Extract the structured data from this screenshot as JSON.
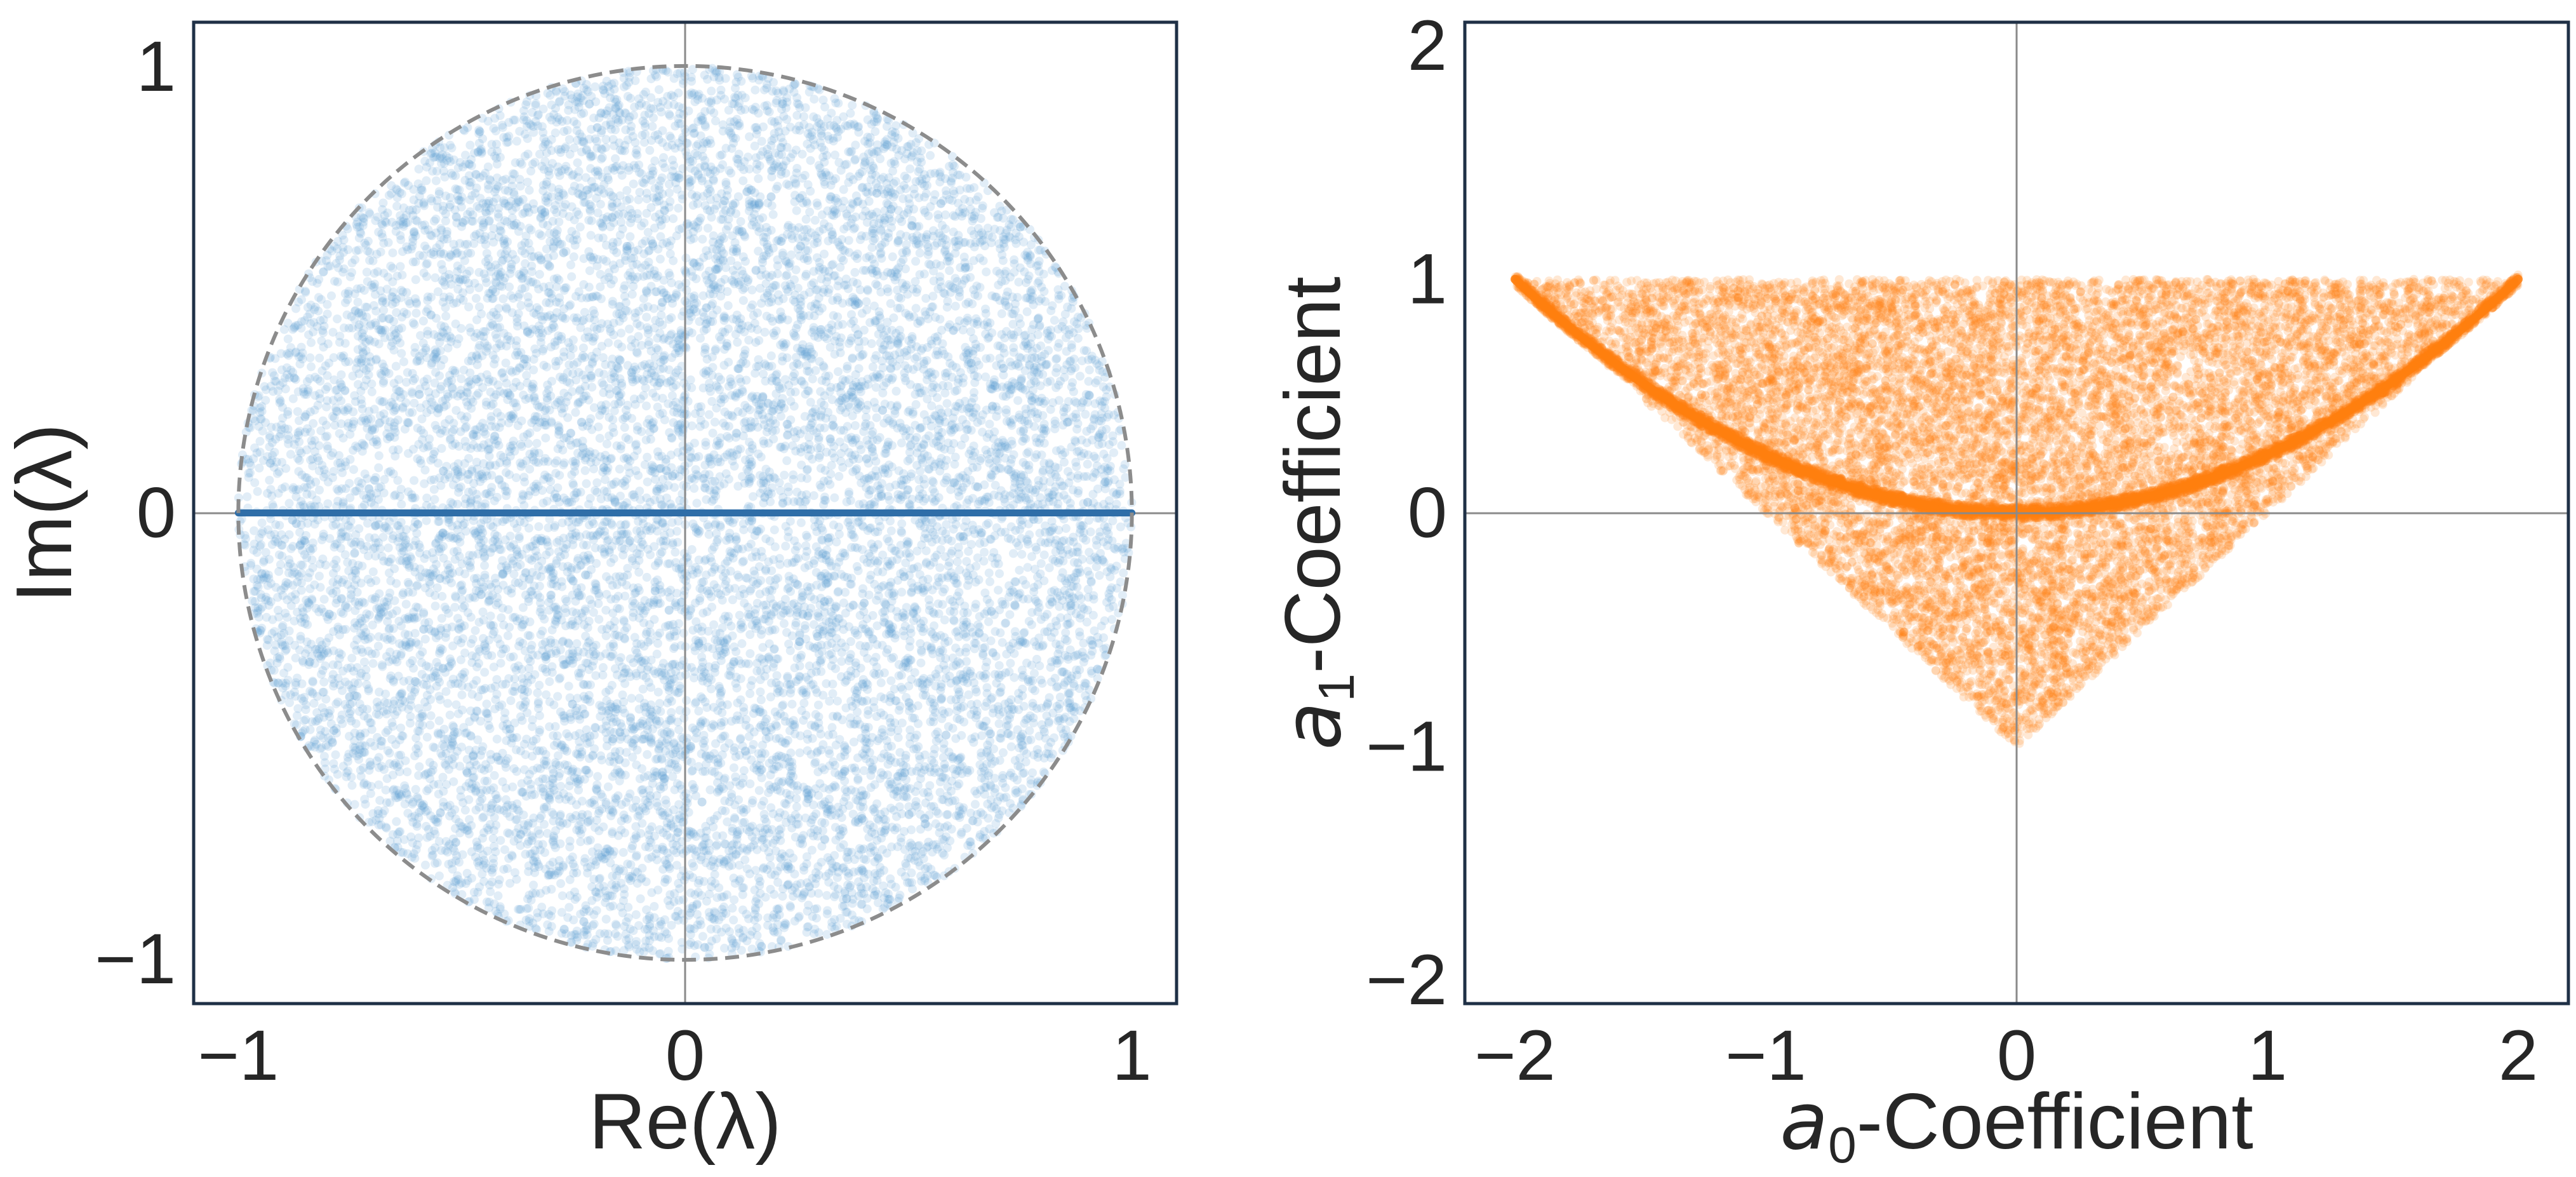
{
  "chart_data": [
    {
      "type": "scatter",
      "title": "",
      "xlabel": "Re(λ)",
      "ylabel": "Im(λ)",
      "xlim": [
        -1.1,
        1.1
      ],
      "ylim": [
        -1.1,
        1.1
      ],
      "xticks": [
        -1,
        0,
        1
      ],
      "yticks": [
        -1,
        0,
        1
      ],
      "xtick_labels": [
        "−1",
        "0",
        "1"
      ],
      "ytick_labels": [
        "−1",
        "0",
        "1"
      ],
      "grid": false,
      "zero_lines": true,
      "legend": false,
      "description": "Roots of random quadratics: complex roots fill unit disk uniformly; real roots lie on the segment [-1, 1] of the real axis",
      "unit_circle": {
        "center": [
          0,
          0
        ],
        "radius": 1,
        "style": "dashed",
        "color": "#888888"
      },
      "series": [
        {
          "region": "disk",
          "center": [
            0,
            0
          ],
          "radius": 1,
          "color": "#5b9bd5",
          "alpha": 0.18,
          "approx_points": 12000
        },
        {
          "region": "segment",
          "y": 0,
          "x_range": [
            -1,
            1
          ],
          "color": "#2f6ea8",
          "alpha": 0.9
        }
      ]
    },
    {
      "type": "scatter",
      "title": "",
      "xlabel": "a",
      "xlabel_sub": "0",
      "xlabel_suffix": "-Coefficient",
      "ylabel": "a",
      "ylabel_sub": "1",
      "ylabel_suffix": "-Coefficient",
      "xlim": [
        -2.2,
        2.2
      ],
      "ylim": [
        -2.1,
        2.1
      ],
      "xticks": [
        -2,
        -1,
        0,
        1,
        2
      ],
      "yticks": [
        -2,
        -1,
        0,
        1,
        2
      ],
      "xtick_labels": [
        "−2",
        "−1",
        "0",
        "1",
        "2"
      ],
      "ytick_labels": [
        "−2",
        "−1",
        "0",
        "1",
        "2"
      ],
      "grid": false,
      "zero_lines": true,
      "legend": false,
      "description": "Coefficient region: triangle with vertices (-2,1), (2,1), (0,-1); dense along parabola a1 = a0^2/4 from (-2,1) through (0,0) to (2,1)",
      "series": [
        {
          "region": "triangle",
          "vertices": [
            [
              -2,
              1
            ],
            [
              2,
              1
            ],
            [
              0,
              -1
            ]
          ],
          "color": "#ff7f0e",
          "alpha": 0.18,
          "approx_points": 12000
        },
        {
          "region": "parabola",
          "equation": "a1 = a0^2 / 4",
          "a0_range": [
            -2,
            2
          ],
          "color": "#ff7f0e",
          "alpha": 0.85
        }
      ]
    }
  ]
}
